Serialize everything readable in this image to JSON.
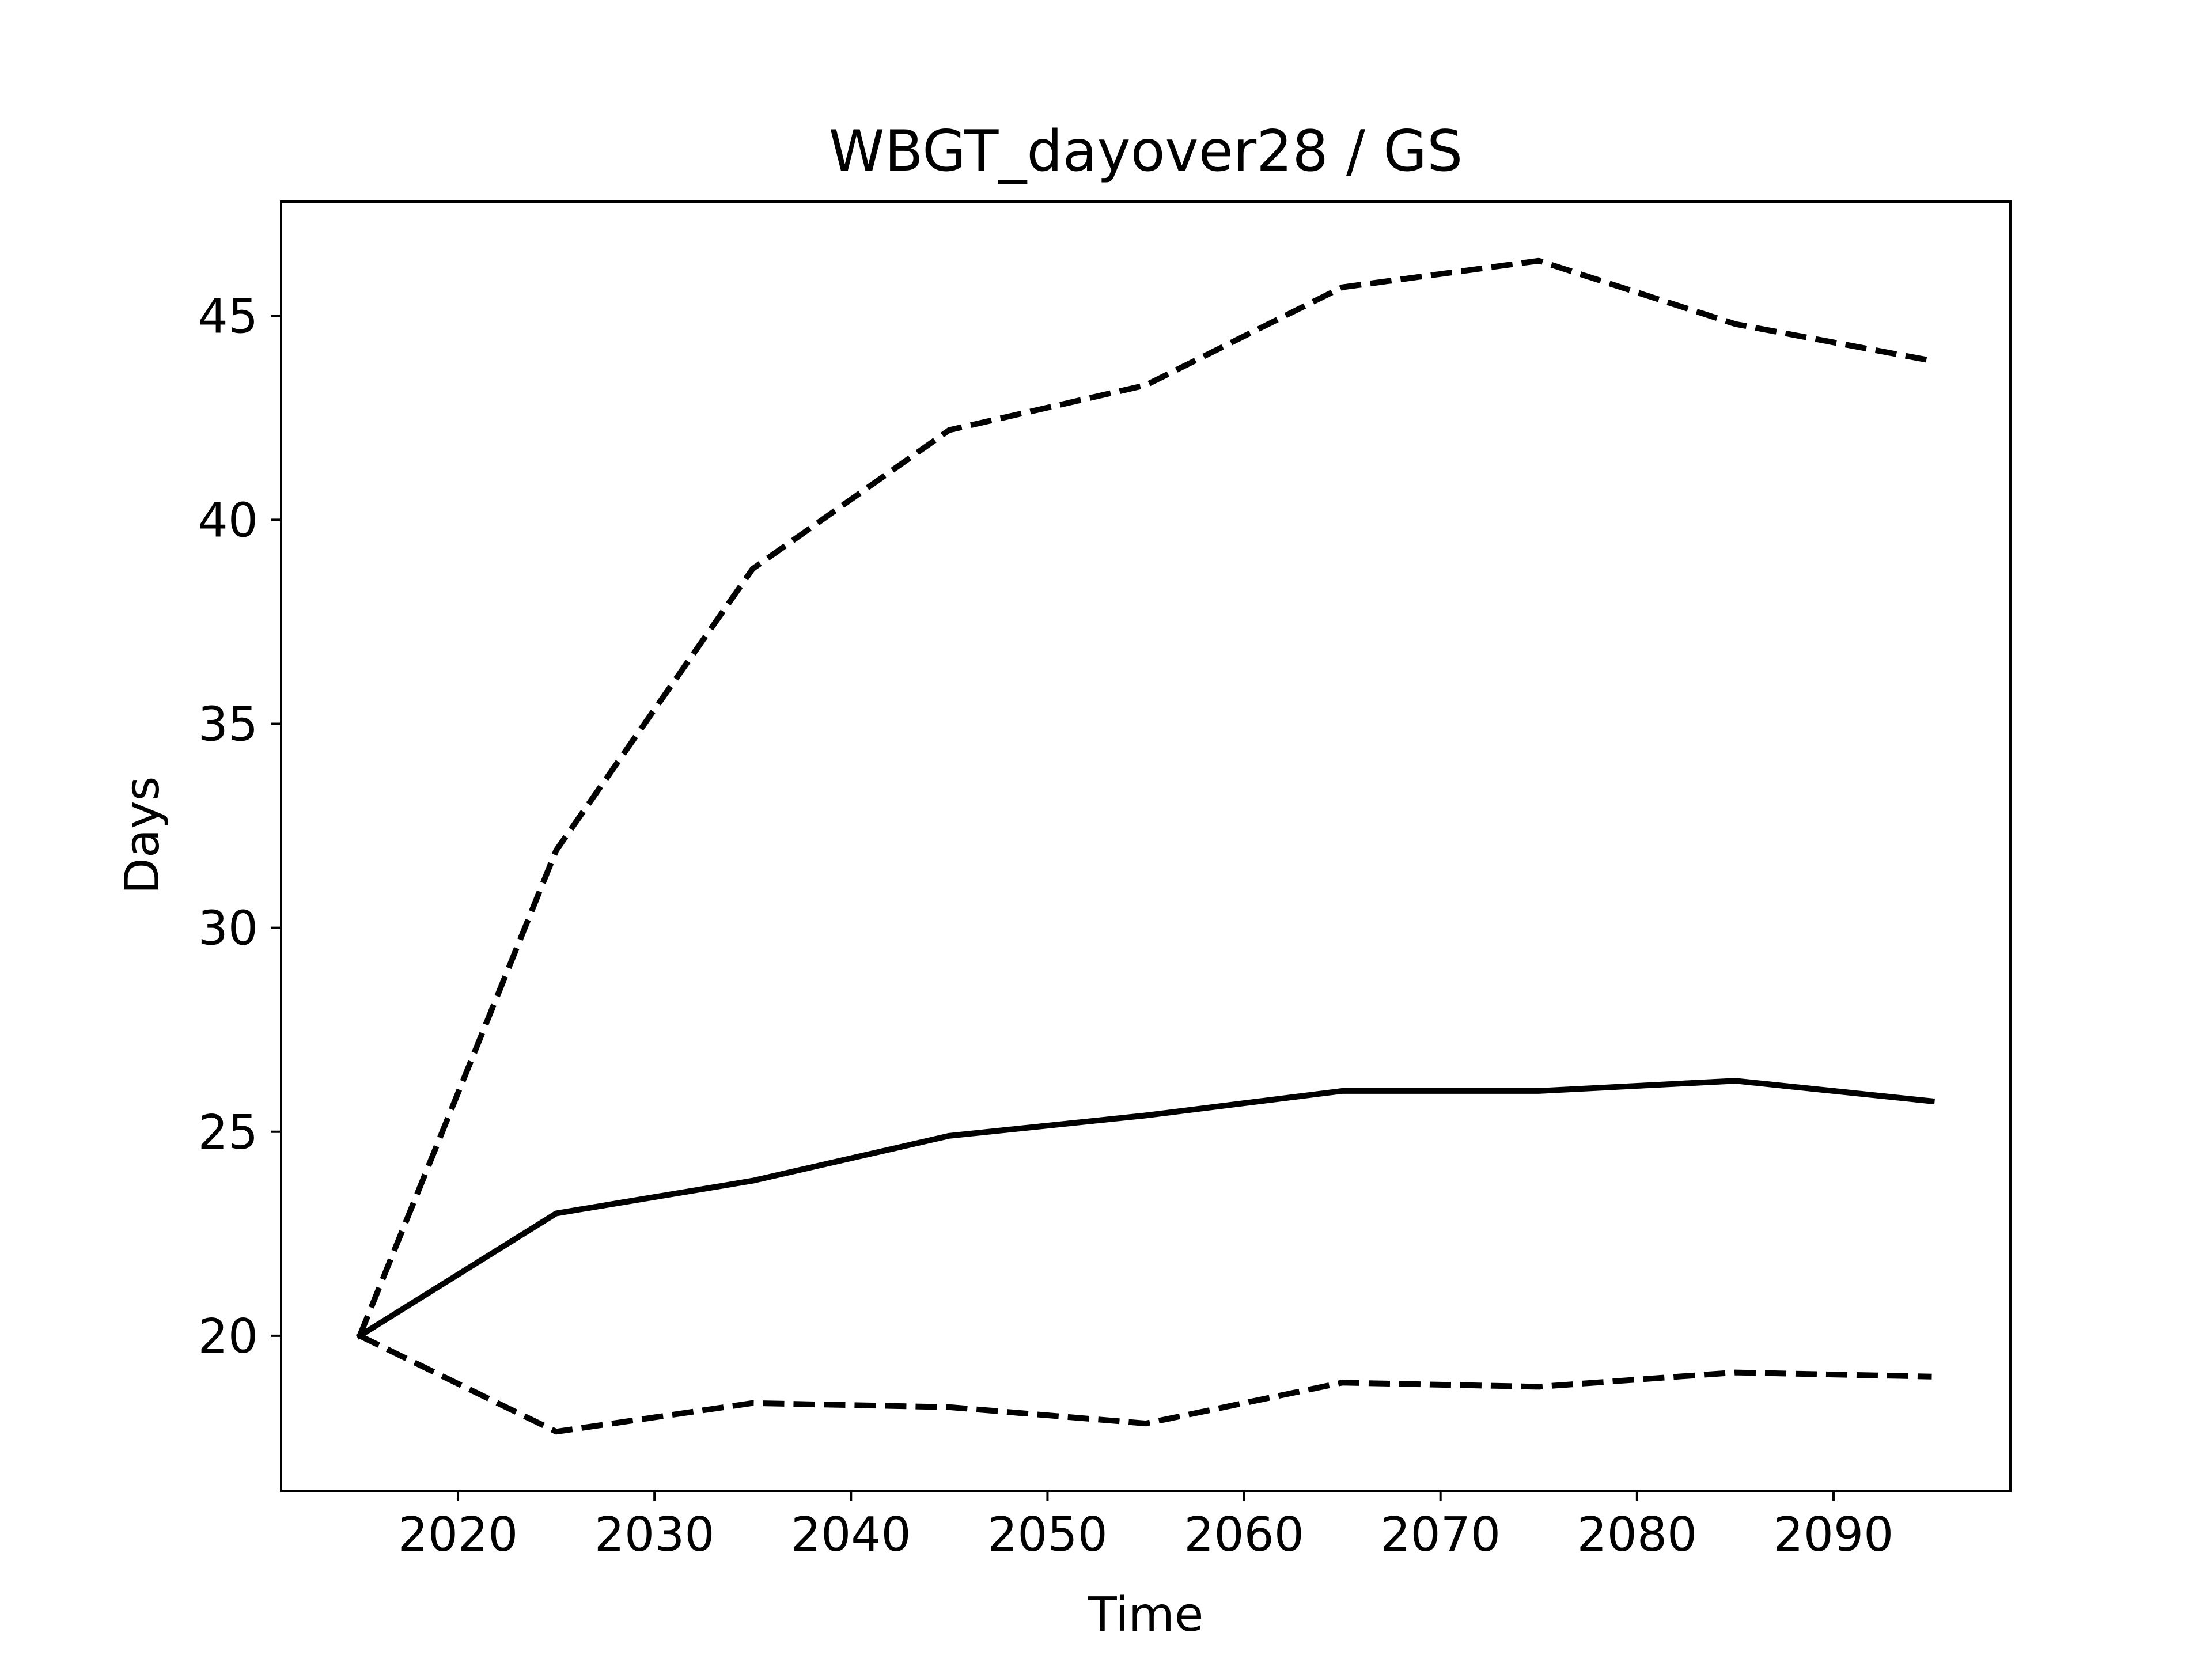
{
  "chart_data": {
    "type": "line",
    "title": "WBGT_dayover28 / GS",
    "xlabel": "Time",
    "ylabel": "Days",
    "xlim": [
      2011,
      2099
    ],
    "ylim": [
      16.2,
      47.8
    ],
    "xticks": [
      2020,
      2030,
      2040,
      2050,
      2060,
      2070,
      2080,
      2090
    ],
    "yticks": [
      20,
      25,
      30,
      35,
      40,
      45
    ],
    "grid": false,
    "legend": "none",
    "x": [
      2015,
      2025,
      2035,
      2045,
      2055,
      2065,
      2075,
      2085,
      2095
    ],
    "series": [
      {
        "style": "solid",
        "color": "#000000",
        "values": [
          20.0,
          23.0,
          23.8,
          24.9,
          25.4,
          26.0,
          26.0,
          26.25,
          25.75
        ]
      },
      {
        "style": "dashed",
        "color": "#000000",
        "values": [
          20.0,
          31.9,
          38.8,
          42.2,
          43.3,
          45.7,
          46.35,
          44.8,
          43.9
        ]
      },
      {
        "style": "dashed",
        "color": "#000000",
        "values": [
          20.0,
          17.65,
          18.35,
          18.25,
          17.85,
          18.85,
          18.75,
          19.1,
          19.0
        ]
      }
    ]
  }
}
